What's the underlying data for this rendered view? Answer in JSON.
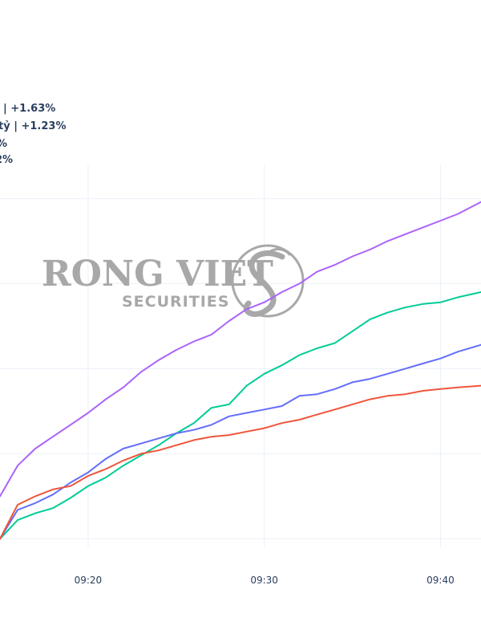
{
  "chart_data": {
    "type": "line",
    "grid": true,
    "legend_position": "top-left",
    "x_ticks": [
      "09:20",
      "09:30",
      "09:40"
    ],
    "x_tick_values": [
      20,
      30,
      40
    ],
    "xlim": [
      15,
      42.3
    ],
    "ylim": [
      -0.05,
      2.2
    ],
    "y_grid_values": [
      0,
      0.5,
      1.0,
      1.5,
      2.0
    ],
    "legend": [
      {
        "label": "| +1.63%",
        "color": "#636efa"
      },
      {
        "label": "tỷ | +1.23%",
        "color": "#ef553b"
      },
      {
        "label": "%",
        "color": "#00cc96"
      },
      {
        "label": "2%",
        "color": "#ab63fa"
      }
    ],
    "series": [
      {
        "color": "#ab63fa",
        "x": [
          15,
          16,
          17,
          18,
          19,
          20,
          21,
          22,
          23,
          24,
          25,
          26,
          27,
          28,
          29,
          30,
          31,
          32,
          33,
          34,
          35,
          36,
          37,
          38,
          39,
          40,
          41,
          42.3
        ],
        "y": [
          0.25,
          0.43,
          0.53,
          0.6,
          0.67,
          0.74,
          0.82,
          0.89,
          0.98,
          1.05,
          1.11,
          1.16,
          1.2,
          1.28,
          1.35,
          1.39,
          1.45,
          1.5,
          1.57,
          1.61,
          1.66,
          1.7,
          1.75,
          1.79,
          1.83,
          1.87,
          1.91,
          1.98
        ]
      },
      {
        "color": "#00cc96",
        "x": [
          15,
          16,
          17,
          18,
          19,
          20,
          21,
          22,
          23,
          24,
          25,
          26,
          27,
          28,
          29,
          30,
          31,
          32,
          33,
          34,
          35,
          36,
          37,
          38,
          39,
          40,
          41,
          42.3
        ],
        "y": [
          0.0,
          0.11,
          0.15,
          0.18,
          0.24,
          0.31,
          0.36,
          0.43,
          0.49,
          0.55,
          0.62,
          0.68,
          0.77,
          0.79,
          0.9,
          0.97,
          1.02,
          1.08,
          1.12,
          1.15,
          1.22,
          1.29,
          1.33,
          1.36,
          1.38,
          1.39,
          1.42,
          1.45
        ]
      },
      {
        "color": "#636efa",
        "x": [
          15,
          16,
          17,
          18,
          19,
          20,
          21,
          22,
          23,
          24,
          25,
          26,
          27,
          28,
          29,
          30,
          31,
          32,
          33,
          34,
          35,
          36,
          37,
          38,
          39,
          40,
          41,
          42.3
        ],
        "y": [
          0.0,
          0.17,
          0.21,
          0.26,
          0.33,
          0.39,
          0.47,
          0.53,
          0.56,
          0.59,
          0.62,
          0.64,
          0.67,
          0.72,
          0.74,
          0.76,
          0.78,
          0.84,
          0.85,
          0.88,
          0.92,
          0.94,
          0.97,
          1.0,
          1.03,
          1.06,
          1.1,
          1.14
        ]
      },
      {
        "color": "#ef553b",
        "x": [
          15,
          16,
          17,
          18,
          19,
          20,
          21,
          22,
          23,
          24,
          25,
          26,
          27,
          28,
          29,
          30,
          31,
          32,
          33,
          34,
          35,
          36,
          37,
          38,
          39,
          40,
          41,
          42.3
        ],
        "y": [
          0.0,
          0.2,
          0.25,
          0.29,
          0.31,
          0.37,
          0.41,
          0.46,
          0.5,
          0.52,
          0.55,
          0.58,
          0.6,
          0.61,
          0.63,
          0.65,
          0.68,
          0.7,
          0.73,
          0.76,
          0.79,
          0.82,
          0.84,
          0.85,
          0.87,
          0.88,
          0.89,
          0.9
        ]
      }
    ]
  },
  "watermark": {
    "line1": "RONG VIET",
    "line2": "SECURITIES",
    "color": "#a8a8a8"
  }
}
